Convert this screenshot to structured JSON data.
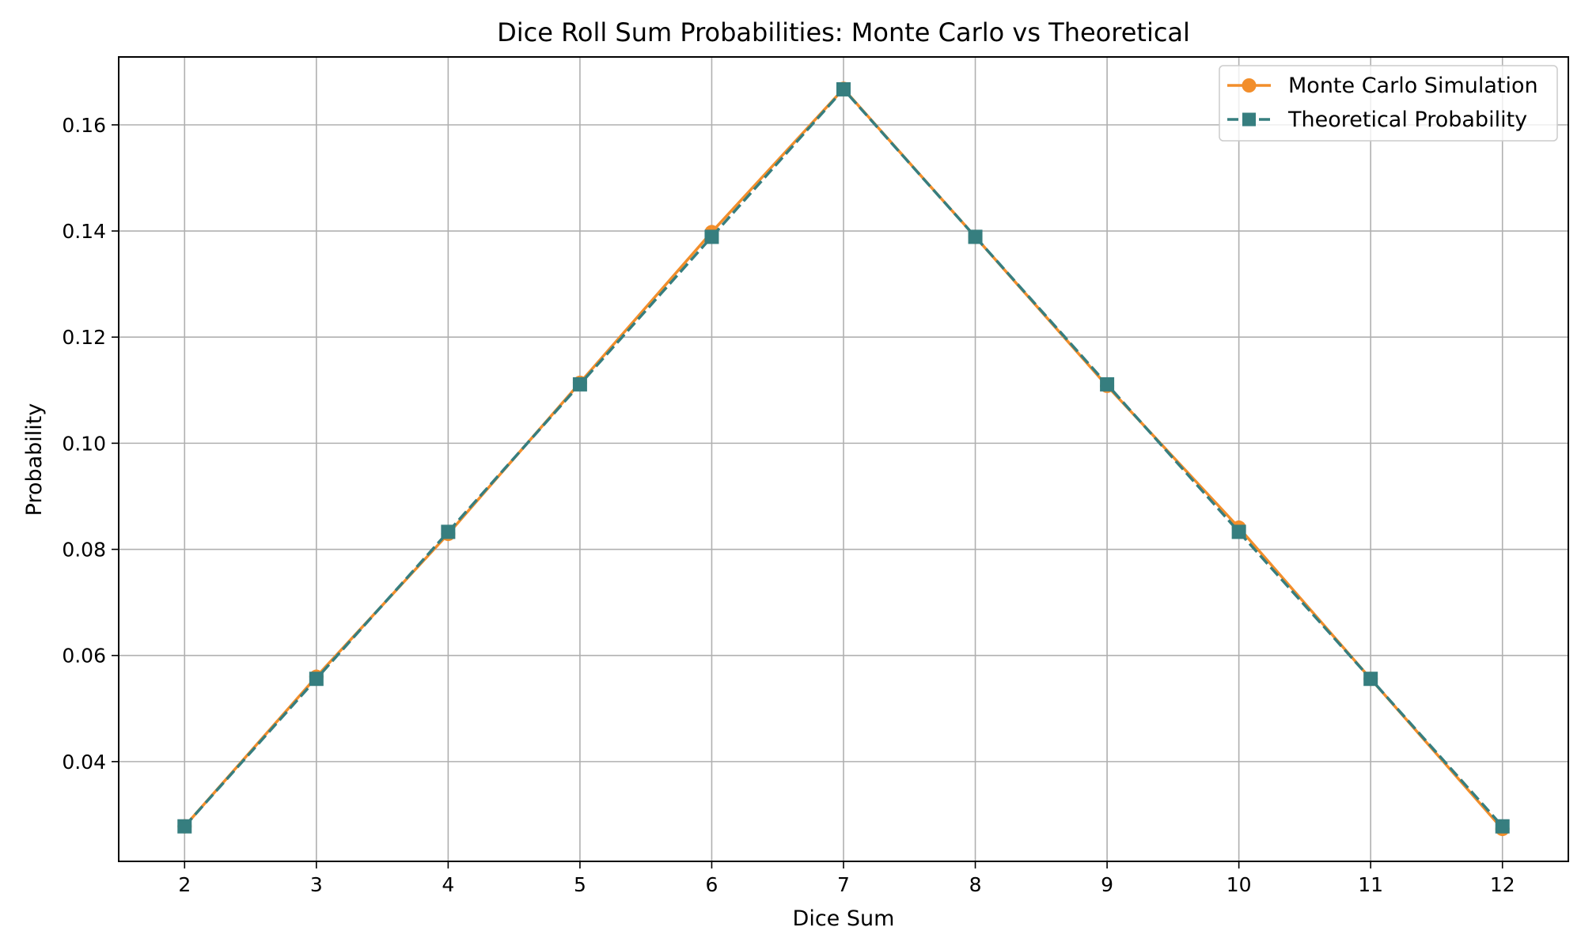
{
  "chart_data": {
    "type": "line",
    "title": "Dice Roll Sum Probabilities: Monte Carlo vs Theoretical",
    "xlabel": "Dice Sum",
    "ylabel": "Probability",
    "x": [
      2,
      3,
      4,
      5,
      6,
      7,
      8,
      9,
      10,
      11,
      12
    ],
    "xlim": [
      1.5,
      12.5
    ],
    "ylim": [
      0.0212,
      0.1728
    ],
    "y_ticks": [
      0.04,
      0.06,
      0.08,
      0.1,
      0.12,
      0.14,
      0.16
    ],
    "y_tick_labels": [
      "0.04",
      "0.06",
      "0.08",
      "0.10",
      "0.12",
      "0.14",
      "0.16"
    ],
    "x_tick_labels": [
      "2",
      "3",
      "4",
      "5",
      "6",
      "7",
      "8",
      "9",
      "10",
      "11",
      "12"
    ],
    "grid": true,
    "legend_position": "top-right",
    "series": [
      {
        "name": "Monte Carlo Simulation",
        "color": "#F28E2B",
        "marker": "circle",
        "linestyle": "solid",
        "values": [
          0.0278,
          0.056,
          0.0829,
          0.1114,
          0.1398,
          0.1668,
          0.1389,
          0.1108,
          0.0841,
          0.0556,
          0.0273
        ]
      },
      {
        "name": "Theoretical Probability",
        "color": "#367E7F",
        "marker": "square",
        "linestyle": "dashed",
        "values": [
          0.0278,
          0.0556,
          0.0833,
          0.1111,
          0.1389,
          0.1667,
          0.1389,
          0.1111,
          0.0833,
          0.0556,
          0.0278
        ]
      }
    ]
  }
}
